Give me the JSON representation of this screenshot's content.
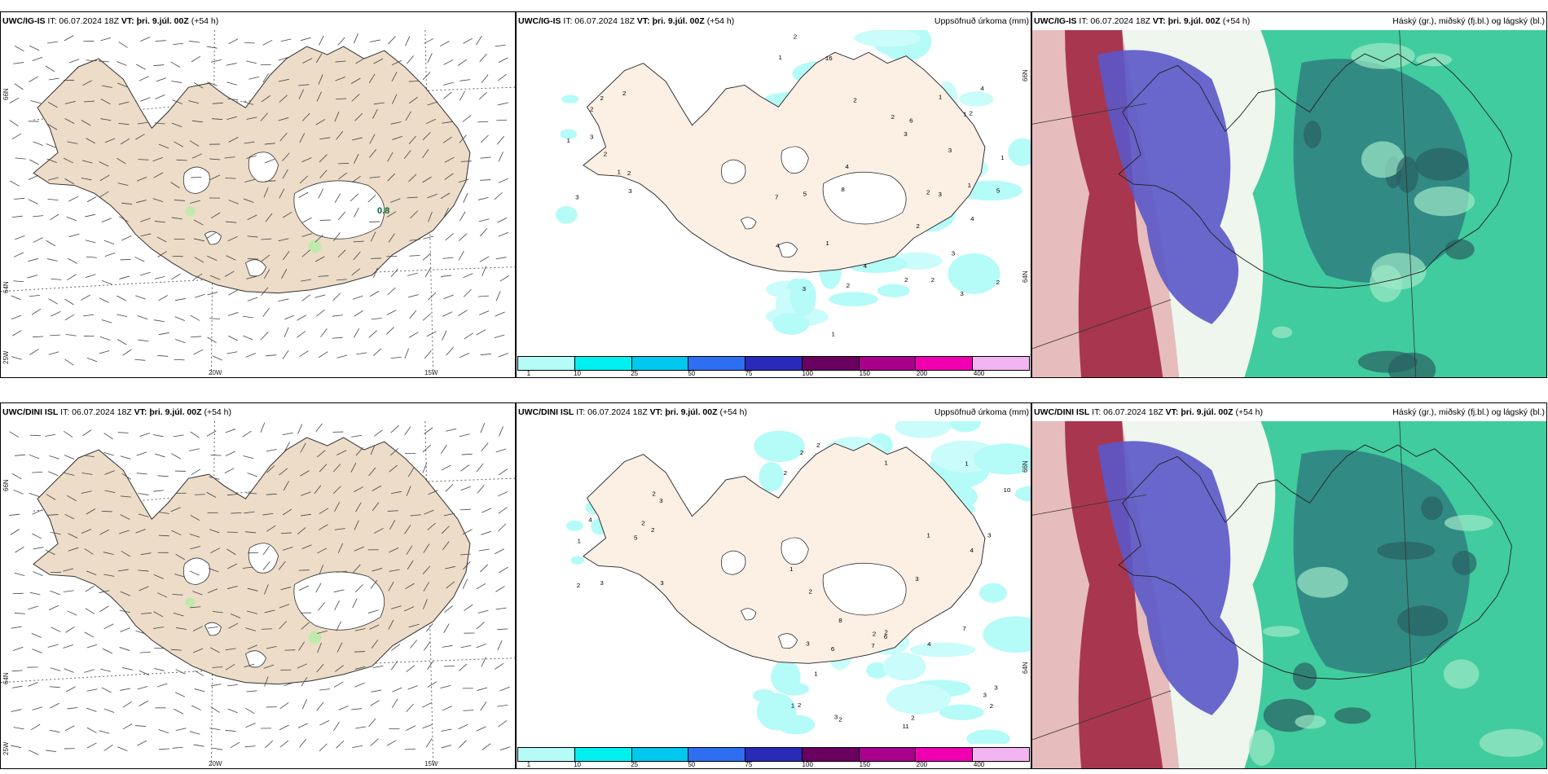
{
  "rows": [
    {
      "model": "UWC/IG-IS",
      "panels": [
        {
          "model": "UWC/IG-IS",
          "it_label": "IT: 06.07.2024 18Z",
          "vt_label": "VT: þri. 9.júl. 00Z",
          "lead": "(+54 h)",
          "right": "",
          "kind": "wind"
        },
        {
          "model": "UWC/IG-IS",
          "it_label": "IT: 06.07.2024 18Z",
          "vt_label": "VT: þri. 9.júl. 00Z",
          "lead": "(+54 h)",
          "right": "Uppsöfnuð úrkoma (mm)",
          "kind": "precip"
        },
        {
          "model": "UWC/IG-IS",
          "it_label": "IT: 06.07.2024 18Z",
          "vt_label": "VT: þri. 9.júl. 00Z",
          "lead": "(+54 h)",
          "right": "Háský (gr.), miðský (fj.bl.) og lágský (bl.)",
          "kind": "cloud"
        }
      ]
    },
    {
      "model": "UWC/DINI ISL",
      "panels": [
        {
          "model": "UWC/DINI ISL",
          "it_label": "IT: 06.07.2024 18Z",
          "vt_label": "VT: þri. 9.júl. 00Z",
          "lead": "(+54 h)",
          "right": "",
          "kind": "wind"
        },
        {
          "model": "UWC/DINI ISL",
          "it_label": "IT: 06.07.2024 18Z",
          "vt_label": "VT: þri. 9.júl. 00Z",
          "lead": "(+54 h)",
          "right": "Uppsöfnuð úrkoma (mm)",
          "kind": "precip"
        },
        {
          "model": "UWC/DINI ISL",
          "it_label": "IT: 06.07.2024 18Z",
          "vt_label": "VT: þri. 9.júl. 00Z",
          "lead": "(+54 h)",
          "right": "Háský (gr.), miðský (fj.bl.) og lágský (bl.)",
          "kind": "cloud"
        }
      ]
    }
  ],
  "axes": {
    "lon": [
      "20W",
      "15W"
    ],
    "lat": [
      "66N",
      "64N"
    ],
    "lon_left": "25W"
  },
  "legend": {
    "labels": [
      "1",
      "10",
      "25",
      "50",
      "75",
      "100",
      "150",
      "200",
      "400"
    ],
    "colors": [
      "#b5fbf8",
      "#00f0f0",
      "#00c8ee",
      "#2e6ef0",
      "#2a2ab8",
      "#6a0060",
      "#a8008c",
      "#f000b0",
      "#f3b4f3"
    ]
  },
  "wind_marker_top": "0.8",
  "precip_numbers_top": [
    "2",
    "2",
    "3",
    "2",
    "1",
    "1",
    "2",
    "3",
    "2",
    "3",
    "4",
    "5",
    "3",
    "2",
    "4",
    "8",
    "7",
    "16",
    "2",
    "1",
    "2",
    "1",
    "1",
    "2",
    "4",
    "3",
    "3",
    "2",
    "6",
    "1",
    "1",
    "2",
    "3",
    "4",
    "4",
    "5",
    "2",
    "1",
    "3",
    "2",
    "3",
    "2",
    "1",
    "2"
  ],
  "precip_numbers_bottom": [
    "2",
    "3",
    "2",
    "2",
    "2",
    "1",
    "3",
    "3",
    "4",
    "5",
    "6",
    "11",
    "7",
    "10",
    "2",
    "1",
    "2",
    "1",
    "2",
    "1",
    "3",
    "3",
    "2",
    "4",
    "2",
    "3",
    "2",
    "3",
    "1",
    "1",
    "2",
    "2",
    "7",
    "8",
    "3",
    "4",
    "3",
    "6",
    "1",
    "2",
    "2"
  ]
}
